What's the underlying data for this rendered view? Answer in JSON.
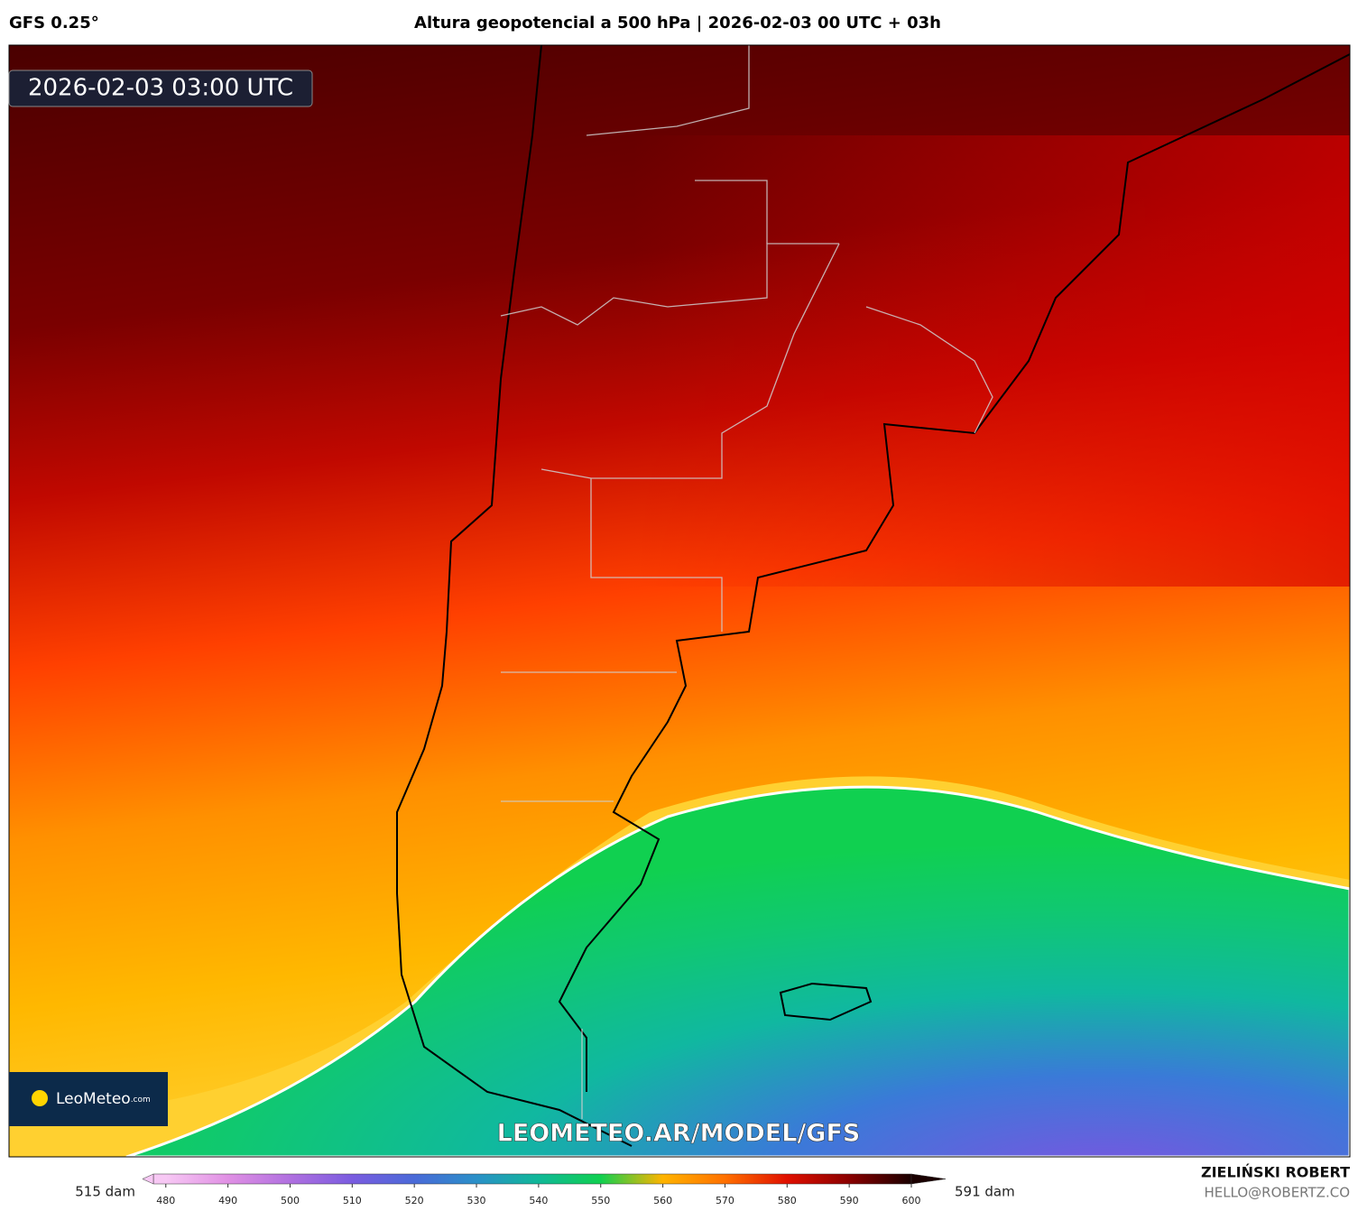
{
  "header": {
    "model": "GFS 0.25°",
    "title": "Altura geopotencial a 500 hPa | 2026-02-03 00 UTC + 03h"
  },
  "timestamp": "2026-02-03 03:00 UTC",
  "logo": {
    "name": "LeoMeteo",
    "suffix": ".com"
  },
  "watermark": "LEOMETEO.AR/MODEL/GFS",
  "colorbar": {
    "min_label": "515 dam",
    "max_label": "591 dam",
    "range": [
      478,
      600
    ],
    "ticks": [
      480,
      490,
      500,
      510,
      520,
      530,
      540,
      550,
      560,
      570,
      580,
      590,
      600
    ],
    "colors": [
      "#f7c8f4",
      "#e090e4",
      "#b070e0",
      "#7a5ce0",
      "#4a6ad8",
      "#2a90c8",
      "#10b898",
      "#10d050",
      "#ffb400",
      "#ff7000",
      "#e01000",
      "#8a0000",
      "#1a0000"
    ]
  },
  "credits": {
    "author": "ZIELIŃSKI ROBERT",
    "email": "HELLO@ROBERTZ.CO"
  }
}
